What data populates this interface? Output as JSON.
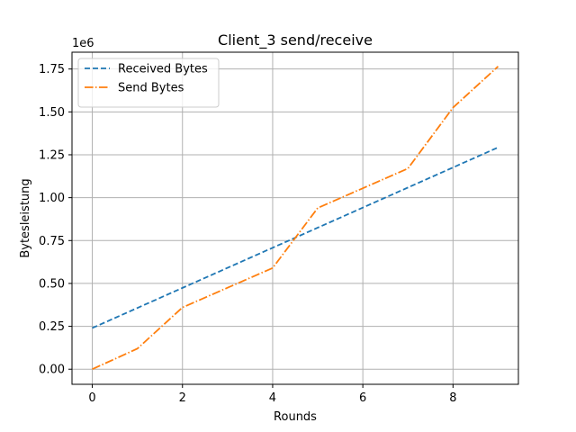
{
  "chart_data": {
    "type": "line",
    "title": "Client_3 send/receive",
    "xlabel": "Rounds",
    "ylabel": "Bytesleistung",
    "y_offset_label": "1e6",
    "xlim": [
      -0.45,
      9.45
    ],
    "ylim": [
      -0.088,
      1.848
    ],
    "grid": true,
    "legend_position": "top-left",
    "x_ticks": [
      0,
      2,
      4,
      6,
      8
    ],
    "x_tick_labels": [
      "0",
      "2",
      "4",
      "6",
      "8"
    ],
    "y_ticks": [
      0.0,
      0.25,
      0.5,
      0.75,
      1.0,
      1.25,
      1.5,
      1.75
    ],
    "y_tick_labels": [
      "0.00",
      "0.25",
      "0.50",
      "0.75",
      "1.00",
      "1.25",
      "1.50",
      "1.75"
    ],
    "x": [
      0,
      1,
      2,
      3,
      4,
      5,
      6,
      7,
      8,
      9
    ],
    "series": [
      {
        "name": "Received Bytes",
        "color": "#1f77b4",
        "style": "dashed",
        "values": [
          0.24,
          0.357,
          0.474,
          0.591,
          0.708,
          0.825,
          0.942,
          1.059,
          1.176,
          1.293
        ]
      },
      {
        "name": "Send Bytes",
        "color": "#ff7f0e",
        "style": "dashdot",
        "values": [
          0.0,
          0.12,
          0.36,
          0.475,
          0.59,
          0.94,
          1.055,
          1.17,
          1.525,
          1.765
        ]
      }
    ]
  }
}
